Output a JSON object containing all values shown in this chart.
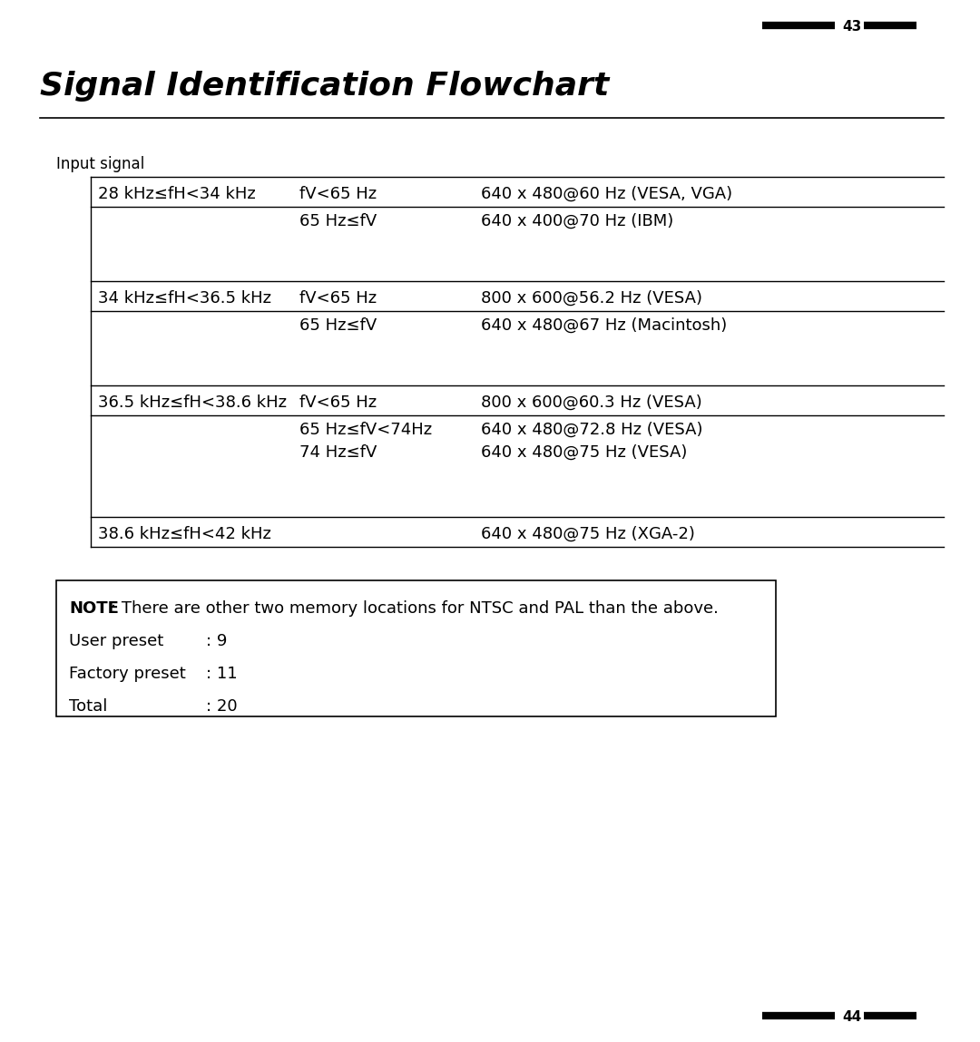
{
  "title": "Signal Identification Flowchart",
  "page_num_top": "43",
  "page_num_bottom": "44",
  "bg_color": "#ffffff",
  "input_signal_label": "Input signal",
  "table_rows": [
    {
      "col1": "28 kHz≤fH<34 kHz",
      "col2": "fV<65 Hz",
      "col3": "640 x 480@60 Hz (VESA, VGA)",
      "group_start": true
    },
    {
      "col1": "",
      "col2": "65 Hz≤fV",
      "col3": "640 x 400@70 Hz (IBM)",
      "group_start": false
    },
    {
      "col1": "34 kHz≤fH<36.5 kHz",
      "col2": "fV<65 Hz",
      "col3": "800 x 600@56.2 Hz (VESA)",
      "group_start": true
    },
    {
      "col1": "",
      "col2": "65 Hz≤fV",
      "col3": "640 x 480@67 Hz (Macintosh)",
      "group_start": false
    },
    {
      "col1": "36.5 kHz≤fH<38.6 kHz",
      "col2": "fV<65 Hz",
      "col3": "800 x 600@60.3 Hz (VESA)",
      "group_start": true
    },
    {
      "col1": "",
      "col2": "65 Hz≤fV<74Hz",
      "col3": "640 x 480@72.8 Hz (VESA)",
      "group_start": false
    },
    {
      "col1": "",
      "col2": "74 Hz≤fV",
      "col3": "640 x 480@75 Hz (VESA)",
      "group_start": false
    },
    {
      "col1": "38.6 kHz≤fH<42 kHz",
      "col2": "",
      "col3": "640 x 480@75 Hz (XGA-2)",
      "group_start": true
    }
  ],
  "note_bold": "NOTE",
  "note_text": ": There are other two memory locations for NTSC and PAL than the above.",
  "preset_lines": [
    {
      "label": "User preset",
      "value": ": 9"
    },
    {
      "label": "Factory preset",
      "value": ": 11"
    },
    {
      "label": "Total",
      "value": ": 20"
    }
  ],
  "text_color": "#000000",
  "font_size_title": 26,
  "font_size_body": 13,
  "font_size_small": 11
}
